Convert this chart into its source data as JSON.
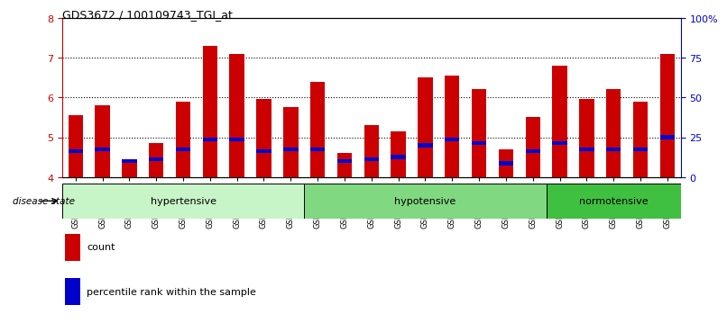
{
  "title": "GDS3672 / 100109743_TGI_at",
  "samples": [
    "GSM493487",
    "GSM493488",
    "GSM493489",
    "GSM493490",
    "GSM493491",
    "GSM493492",
    "GSM493493",
    "GSM493494",
    "GSM493495",
    "GSM493496",
    "GSM493497",
    "GSM493498",
    "GSM493499",
    "GSM493500",
    "GSM493501",
    "GSM493502",
    "GSM493503",
    "GSM493504",
    "GSM493505",
    "GSM493506",
    "GSM493507",
    "GSM493508",
    "GSM493509"
  ],
  "count_values": [
    5.55,
    5.8,
    4.4,
    4.85,
    5.9,
    7.3,
    7.1,
    5.95,
    5.75,
    6.4,
    4.6,
    5.3,
    5.15,
    6.5,
    6.55,
    6.2,
    4.7,
    5.5,
    6.8,
    5.95,
    6.2,
    5.9,
    7.1
  ],
  "percentile_values": [
    4.65,
    4.7,
    4.4,
    4.45,
    4.7,
    4.95,
    4.95,
    4.65,
    4.7,
    4.7,
    4.4,
    4.45,
    4.5,
    4.8,
    4.95,
    4.85,
    4.35,
    4.65,
    4.85,
    4.7,
    4.7,
    4.7,
    5.0
  ],
  "groups": [
    {
      "label": "hypertensive",
      "start": 0,
      "end": 9,
      "color": "#c8f5c8"
    },
    {
      "label": "hypotensive",
      "start": 9,
      "end": 18,
      "color": "#80d880"
    },
    {
      "label": "normotensive",
      "start": 18,
      "end": 23,
      "color": "#40c040"
    }
  ],
  "ylim_left": [
    4,
    8
  ],
  "ylim_right": [
    0,
    100
  ],
  "yticks_left": [
    4,
    5,
    6,
    7,
    8
  ],
  "yticks_right": [
    0,
    25,
    50,
    75,
    100
  ],
  "ytick_labels_right": [
    "0",
    "25",
    "50",
    "75",
    "100%"
  ],
  "bar_color": "#cc0000",
  "marker_color": "#0000cc",
  "bar_width": 0.55,
  "bar_bottom": 4.0,
  "legend_count_label": "count",
  "legend_percentile_label": "percentile rank within the sample",
  "disease_state_label": "disease state",
  "bg_color": "#ffffff",
  "plot_bg_color": "#ffffff",
  "tick_label_color_left": "#cc0000",
  "tick_label_color_right": "#0000cc"
}
